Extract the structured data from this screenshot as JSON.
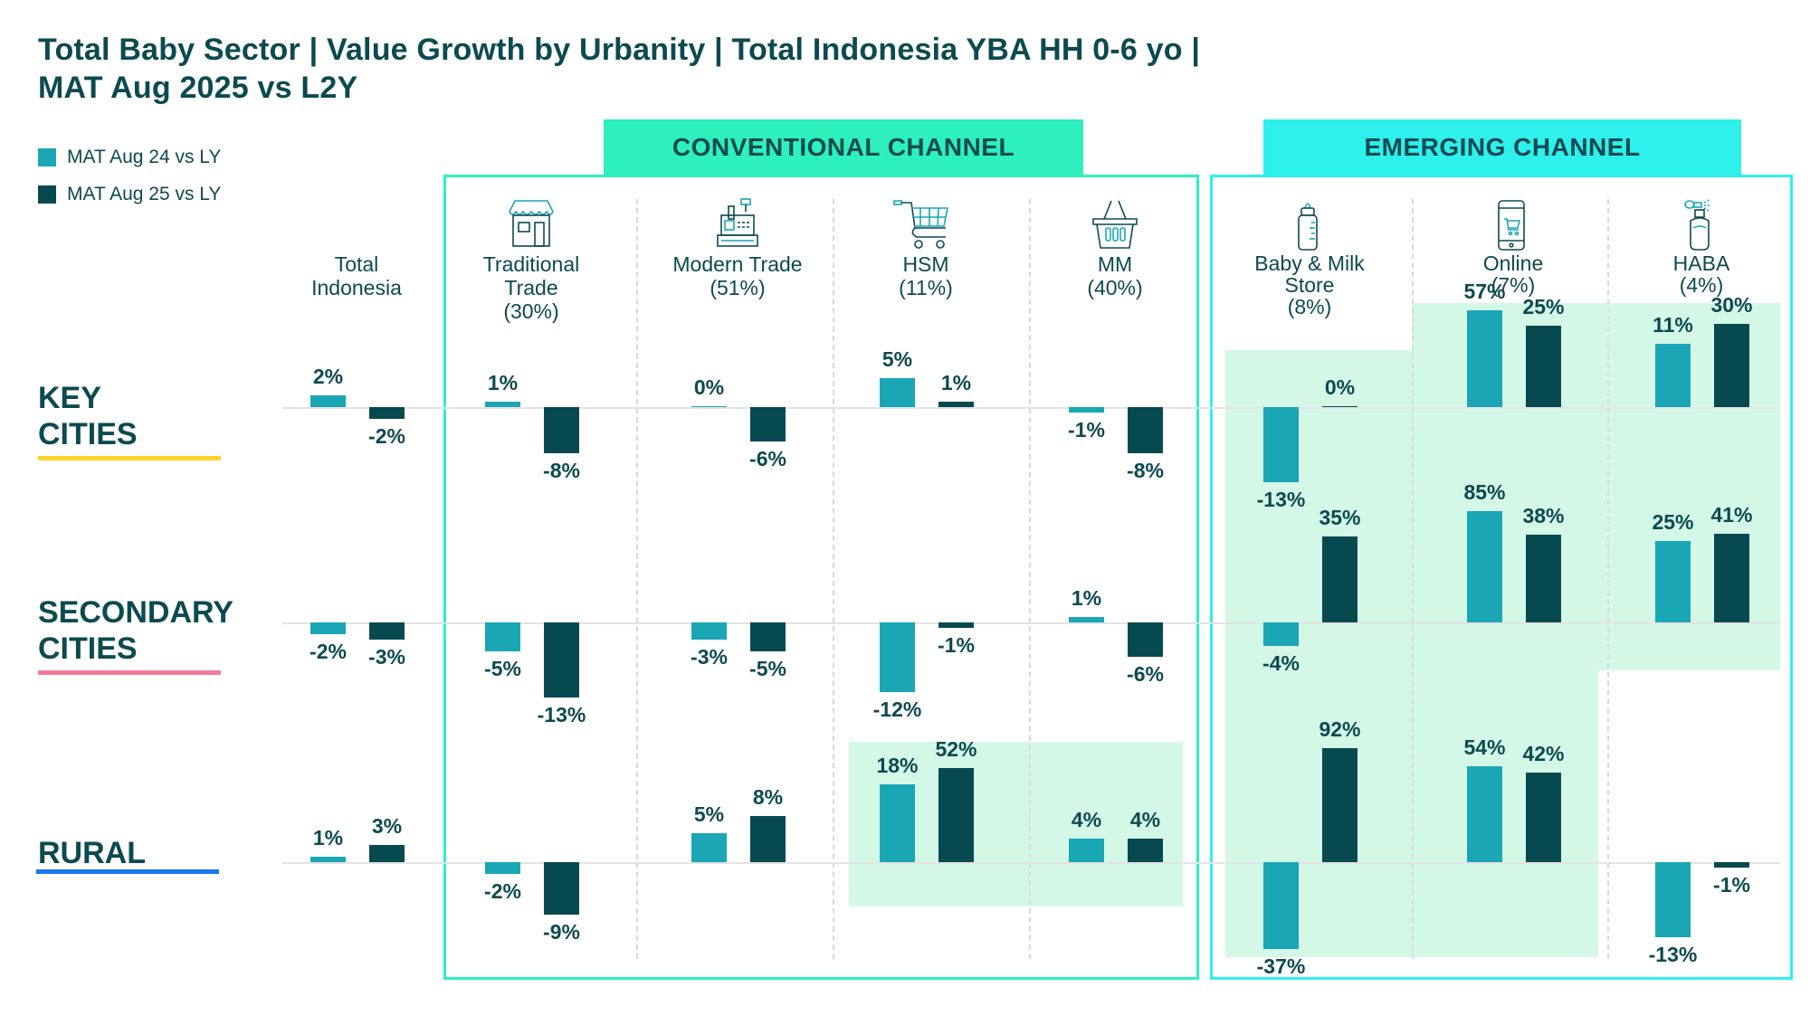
{
  "title_line1": "Total Baby Sector | Value Growth by Urbanity | Total Indonesia YBA HH 0-6 yo |",
  "title_line2": "MAT Aug 2025 vs L2Y",
  "legend": [
    {
      "label": "MAT Aug 24 vs LY",
      "color": "#1ba6b6"
    },
    {
      "label": "MAT Aug 25 vs LY",
      "color": "#064a50"
    }
  ],
  "channels": {
    "conventional": {
      "label": "CONVENTIONAL CHANNEL",
      "color": "#2ef0bd"
    },
    "emerging": {
      "label": "EMERGING CHANNEL",
      "color": "#2ef0ec"
    }
  },
  "rows": [
    {
      "label_line1": "KEY",
      "label_line2": "CITIES",
      "underline_color": "#ffd32a"
    },
    {
      "label_line1": "SECONDARY",
      "label_line2": "CITIES",
      "underline_color": "#f57a9a"
    },
    {
      "label_line1": "",
      "label_line2": "RURAL",
      "underline_color": "#1877f2"
    }
  ],
  "columns": [
    {
      "label": [
        "Total",
        "Indonesia"
      ],
      "icon": "none"
    },
    {
      "label": [
        "Traditional",
        "Trade",
        "(30%)"
      ],
      "icon": "storefront-icon"
    },
    {
      "label": [
        "Modern Trade",
        "(51%)"
      ],
      "icon": "cash-register-icon"
    },
    {
      "label": [
        "HSM",
        "(11%)"
      ],
      "icon": "shopping-cart-icon"
    },
    {
      "label": [
        "MM",
        "(40%)"
      ],
      "icon": "shopping-basket-icon"
    },
    {
      "label": [
        "Baby & Milk",
        "Store",
        "(8%)"
      ],
      "icon": "baby-bottle-icon"
    },
    {
      "label": [
        "Online",
        "(7%)"
      ],
      "icon": "mobile-shopping-icon"
    },
    {
      "label": [
        "HABA",
        "(4%)"
      ],
      "icon": "perfume-bottle-icon"
    }
  ],
  "chart_data": {
    "type": "bar",
    "title": "Total Baby Sector | Value Growth by Urbanity | Total Indonesia YBA HH 0-6 yo | MAT Aug 2025 vs L2Y",
    "categories": [
      "Total Indonesia",
      "Traditional Trade (30%)",
      "Modern Trade (51%)",
      "HSM (11%)",
      "MM (40%)",
      "Baby & Milk Store (8%)",
      "Online (7%)",
      "HABA (4%)"
    ],
    "category_groups": {
      "Conventional Channel": [
        "Traditional Trade (30%)",
        "Modern Trade (51%)",
        "HSM (11%)",
        "MM (40%)"
      ],
      "Emerging Channel": [
        "Baby & Milk Store (8%)",
        "Online (7%)",
        "HABA (4%)"
      ]
    },
    "unit": "%",
    "legend_position": "top-left",
    "panels": [
      {
        "name": "KEY CITIES",
        "series": [
          {
            "name": "MAT Aug 24 vs LY",
            "values": [
              2,
              1,
              0,
              5,
              -1,
              -13,
              57,
              11
            ]
          },
          {
            "name": "MAT Aug 25 vs LY",
            "values": [
              -2,
              -8,
              -6,
              1,
              -8,
              0,
              25,
              30
            ]
          }
        ]
      },
      {
        "name": "SECONDARY CITIES",
        "series": [
          {
            "name": "MAT Aug 24 vs LY",
            "values": [
              -2,
              -5,
              -3,
              -12,
              1,
              -4,
              85,
              25
            ]
          },
          {
            "name": "MAT Aug 25 vs LY",
            "values": [
              -3,
              -13,
              -5,
              -1,
              -6,
              35,
              38,
              41
            ]
          }
        ]
      },
      {
        "name": "RURAL",
        "series": [
          {
            "name": "MAT Aug 24 vs LY",
            "values": [
              1,
              -2,
              5,
              18,
              4,
              -37,
              54,
              -13
            ]
          },
          {
            "name": "MAT Aug 25 vs LY",
            "values": [
              3,
              -9,
              8,
              52,
              4,
              92,
              42,
              -1
            ]
          }
        ]
      }
    ],
    "highlighted_cells": [
      {
        "panel": "KEY CITIES",
        "categories": [
          "Baby & Milk Store (8%)",
          "Online (7%)",
          "HABA (4%)"
        ]
      },
      {
        "panel": "SECONDARY CITIES",
        "categories": [
          "Baby & Milk Store (8%)",
          "Online (7%)",
          "HABA (4%)"
        ]
      },
      {
        "panel": "RURAL",
        "categories": [
          "HSM (11%)",
          "MM (40%)",
          "Baby & Milk Store (8%)",
          "Online (7%)"
        ]
      }
    ],
    "xlabel": "",
    "ylabel": ""
  }
}
